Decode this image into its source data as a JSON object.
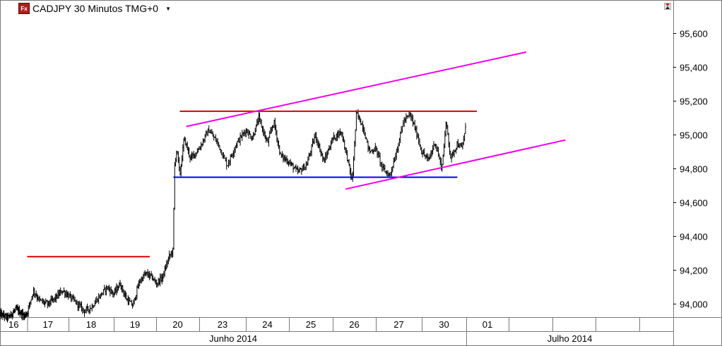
{
  "header": {
    "fx_icon": "Fx",
    "title": "CADJPY 30 Minutos TMG+0",
    "dropdown_icon": "chevron-down-icon",
    "corner_icon": "hourglass-icon"
  },
  "chart_data": {
    "type": "candlestick",
    "symbol": "CADJPY",
    "timeframe": "30 Minutos",
    "timezone": "TMG+0",
    "ylim": [
      93.93,
      95.75
    ],
    "y_ticks": [
      94.0,
      94.2,
      94.4,
      94.6,
      94.8,
      95.0,
      95.2,
      95.4,
      95.6
    ],
    "y_tick_labels": [
      "94,000",
      "94,200",
      "94,400",
      "94,600",
      "94,800",
      "95,000",
      "95,200",
      "95,400",
      "95,600"
    ],
    "days": [
      {
        "label": "16",
        "start": 0,
        "end": 1
      },
      {
        "label": "17",
        "start": 1,
        "end": 2
      },
      {
        "label": "18",
        "start": 2,
        "end": 3
      },
      {
        "label": "19",
        "start": 3,
        "end": 4
      },
      {
        "label": "20",
        "start": 4,
        "end": 5
      },
      {
        "label": "23",
        "start": 5,
        "end": 6
      },
      {
        "label": "24",
        "start": 6,
        "end": 7
      },
      {
        "label": "25",
        "start": 7,
        "end": 8
      },
      {
        "label": "26",
        "start": 8,
        "end": 9
      },
      {
        "label": "27",
        "start": 9,
        "end": 10
      },
      {
        "label": "30",
        "start": 10,
        "end": 11
      },
      {
        "label": "01",
        "start": 11,
        "end": 12
      }
    ],
    "months": [
      {
        "label": "Junho 2014",
        "start": 0,
        "end": 11
      },
      {
        "label": "Julho 2014",
        "start": 11,
        "end": 16
      }
    ],
    "price_path": [
      [
        0.0,
        93.94
      ],
      [
        0.3,
        93.92
      ],
      [
        0.6,
        93.97
      ],
      [
        0.9,
        93.93
      ],
      [
        1.0,
        93.95
      ],
      [
        1.15,
        94.08
      ],
      [
        1.3,
        94.02
      ],
      [
        1.5,
        94.0
      ],
      [
        1.7,
        94.04
      ],
      [
        1.85,
        94.08
      ],
      [
        2.0,
        94.05
      ],
      [
        2.2,
        94.0
      ],
      [
        2.35,
        93.96
      ],
      [
        2.5,
        93.98
      ],
      [
        2.7,
        94.05
      ],
      [
        2.85,
        94.1
      ],
      [
        3.0,
        94.06
      ],
      [
        3.15,
        94.12
      ],
      [
        3.3,
        94.03
      ],
      [
        3.45,
        93.99
      ],
      [
        3.6,
        94.13
      ],
      [
        3.75,
        94.18
      ],
      [
        3.9,
        94.16
      ],
      [
        4.0,
        94.12
      ],
      [
        4.15,
        94.16
      ],
      [
        4.3,
        94.28
      ],
      [
        4.4,
        94.32
      ],
      [
        4.42,
        94.8
      ],
      [
        4.48,
        94.92
      ],
      [
        4.55,
        94.76
      ],
      [
        4.65,
        94.98
      ],
      [
        4.8,
        94.86
      ],
      [
        5.0,
        94.92
      ],
      [
        5.2,
        95.03
      ],
      [
        5.4,
        94.95
      ],
      [
        5.6,
        94.82
      ],
      [
        5.8,
        94.95
      ],
      [
        6.0,
        95.03
      ],
      [
        6.15,
        94.98
      ],
      [
        6.3,
        95.1
      ],
      [
        6.5,
        94.95
      ],
      [
        6.65,
        95.08
      ],
      [
        6.8,
        94.88
      ],
      [
        7.0,
        94.84
      ],
      [
        7.2,
        94.78
      ],
      [
        7.4,
        94.82
      ],
      [
        7.6,
        95.0
      ],
      [
        7.8,
        94.84
      ],
      [
        8.0,
        94.98
      ],
      [
        8.2,
        95.02
      ],
      [
        8.35,
        94.85
      ],
      [
        8.45,
        94.72
      ],
      [
        8.55,
        95.13
      ],
      [
        8.7,
        95.05
      ],
      [
        8.85,
        94.9
      ],
      [
        9.0,
        94.92
      ],
      [
        9.15,
        94.8
      ],
      [
        9.3,
        94.76
      ],
      [
        9.45,
        94.9
      ],
      [
        9.6,
        95.08
      ],
      [
        9.75,
        95.12
      ],
      [
        9.9,
        95.0
      ],
      [
        10.0,
        94.9
      ],
      [
        10.15,
        94.85
      ],
      [
        10.3,
        94.96
      ],
      [
        10.45,
        94.8
      ],
      [
        10.55,
        95.08
      ],
      [
        10.65,
        94.86
      ],
      [
        10.8,
        94.95
      ],
      [
        10.9,
        94.92
      ],
      [
        11.0,
        95.06
      ]
    ],
    "annotations": [
      {
        "kind": "resistance-line",
        "color": "#dd0000",
        "x1": 1.0,
        "y1": 94.28,
        "x2": 3.85,
        "y2": 94.28
      },
      {
        "kind": "resistance-line",
        "color": "#dd0000",
        "x1": 4.55,
        "y1": 95.14,
        "x2": 11.25,
        "y2": 95.14
      },
      {
        "kind": "support-line",
        "color": "#0000ee",
        "x1": 4.4,
        "y1": 94.75,
        "x2": 10.8,
        "y2": 94.75
      },
      {
        "kind": "channel-upper",
        "color": "#ee00ee",
        "x1": 4.7,
        "y1": 95.05,
        "x2": 12.4,
        "y2": 95.49
      },
      {
        "kind": "channel-lower",
        "color": "#ee00ee",
        "x1": 8.3,
        "y1": 94.68,
        "x2": 13.3,
        "y2": 94.97
      }
    ]
  }
}
